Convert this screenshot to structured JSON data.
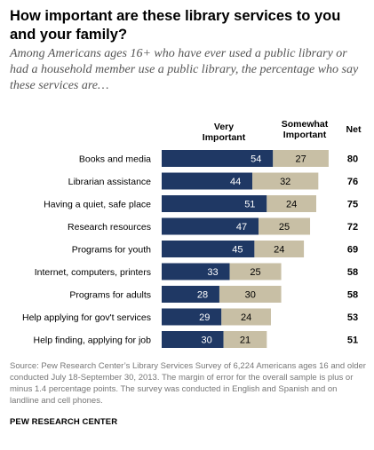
{
  "title": "How important are these library services to you and your family?",
  "subtitle": "Among Americans ages 16+ who have ever used a public library or had a household member use a public library, the percentage who say these services are…",
  "headers": {
    "very_line1": "Very",
    "very_line2": "Important",
    "somewhat_line1": "Somewhat",
    "somewhat_line2": "Important",
    "net": "Net"
  },
  "colors": {
    "very": "#1f3864",
    "somewhat": "#c8bfa5"
  },
  "source": "Source: Pew Research Center’s Library Services Survey of 6,224 Americans ages 16 and older conducted July 18-September 30, 2013. The margin of error for the overall sample is plus or minus 1.4 percentage points. The survey was conducted in English and Spanish and on landline and cell phones.",
  "credit": "PEW RESEARCH CENTER",
  "chart_data": {
    "type": "bar",
    "orientation": "horizontal",
    "stacked": true,
    "categories": [
      "Books and media",
      "Librarian assistance",
      "Having a quiet, safe place",
      "Research resources",
      "Programs for youth",
      "Internet, computers, printers",
      "Programs for adults",
      "Help applying for gov't services",
      "Help finding, applying for job"
    ],
    "series": [
      {
        "name": "Very Important",
        "values": [
          54,
          44,
          51,
          47,
          45,
          33,
          28,
          29,
          30
        ]
      },
      {
        "name": "Somewhat Important",
        "values": [
          27,
          32,
          24,
          25,
          24,
          25,
          30,
          24,
          21
        ]
      }
    ],
    "net": [
      80,
      76,
      75,
      72,
      69,
      58,
      58,
      53,
      51
    ],
    "grid": false
  }
}
